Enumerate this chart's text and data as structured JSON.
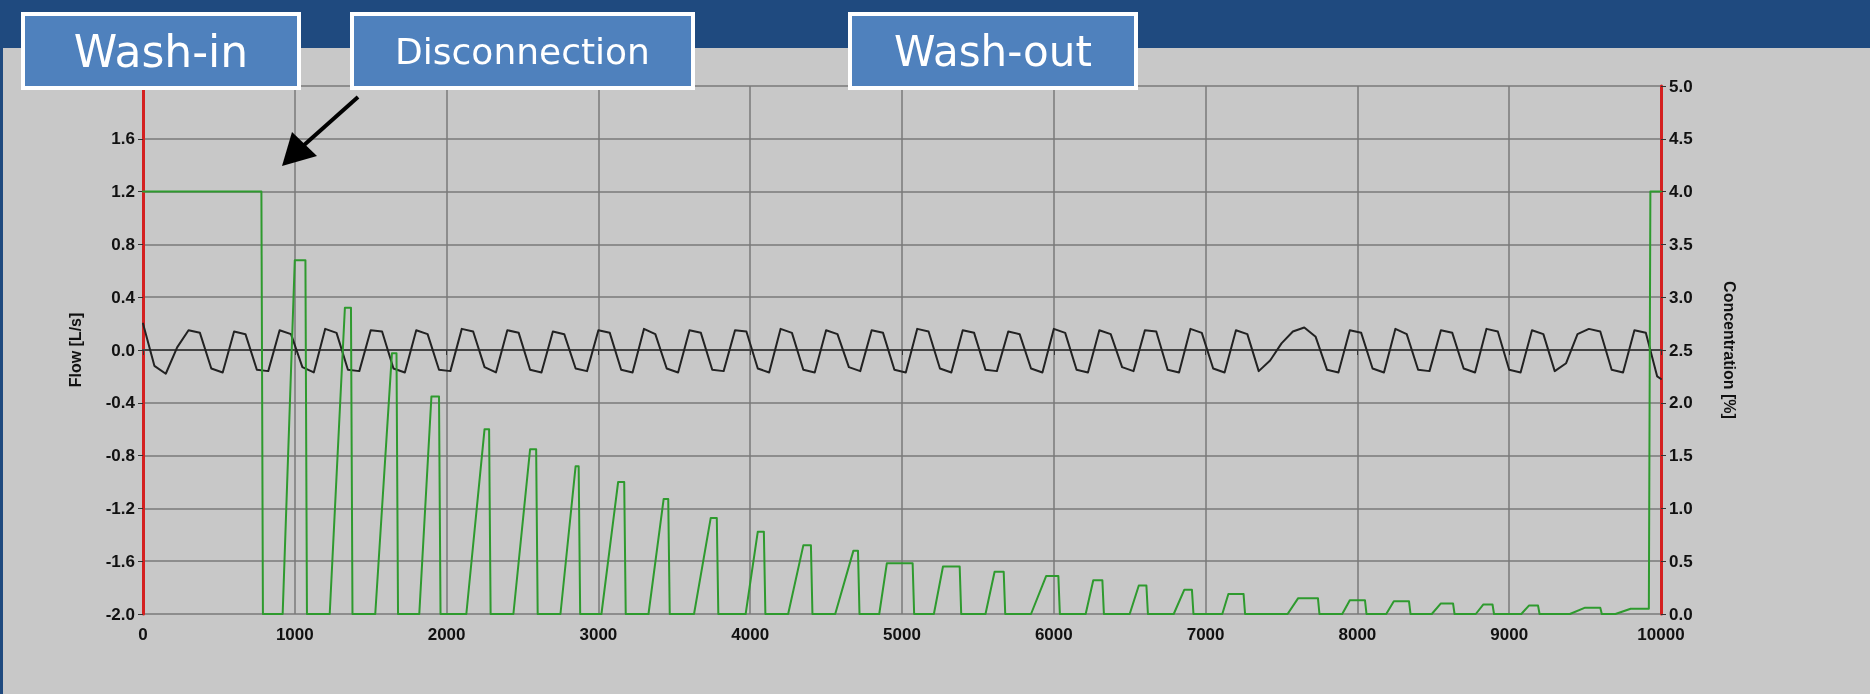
{
  "chart_data": {
    "type": "line",
    "ylabel": "Flow [L/s]",
    "y2label": "Concentration [%]",
    "annotations": [
      "Wash-in",
      "Disconnection",
      "Wash-out"
    ],
    "xlim": [
      0,
      10000
    ],
    "xticks": [
      0,
      1000,
      2000,
      3000,
      4000,
      5000,
      6000,
      7000,
      8000,
      9000,
      10000
    ],
    "ylim": [
      -2,
      2
    ],
    "yticks": [
      {
        "value": -2,
        "label": "-2.0"
      },
      {
        "value": -1.6,
        "label": "-1.6"
      },
      {
        "value": -1.2,
        "label": "-1.2"
      },
      {
        "value": -0.8,
        "label": "-0.8"
      },
      {
        "value": -0.4,
        "label": "-0.4"
      },
      {
        "value": 0,
        "label": "0.0"
      },
      {
        "value": 0.4,
        "label": "0.4"
      },
      {
        "value": 0.8,
        "label": "0.8"
      },
      {
        "value": 1.2,
        "label": "1.2"
      },
      {
        "value": 1.6,
        "label": "1.6"
      },
      {
        "value": 2,
        "label": null
      }
    ],
    "y2lim": [
      0,
      5
    ],
    "y2ticks": [
      {
        "value": 0,
        "label": "0.0"
      },
      {
        "value": 0.5,
        "label": "0.5"
      },
      {
        "value": 1,
        "label": "1.0"
      },
      {
        "value": 1.5,
        "label": "1.5"
      },
      {
        "value": 2,
        "label": "2.0"
      },
      {
        "value": 2.5,
        "label": "2.5"
      },
      {
        "value": 3,
        "label": "3.0"
      },
      {
        "value": 3.5,
        "label": "3.5"
      },
      {
        "value": 4,
        "label": "4.0"
      },
      {
        "value": 4.5,
        "label": "4.5"
      },
      {
        "value": 5,
        "label": "5.0"
      }
    ],
    "grid": true,
    "marker": "none",
    "line_style": "solid",
    "series": [
      {
        "color": "#222222",
        "x": [
          0,
          75,
          150,
          225,
          300,
          375,
          450,
          525,
          600,
          675,
          750,
          825,
          900,
          975,
          1050,
          1125,
          1200,
          1275,
          1350,
          1425,
          1500,
          1575,
          1650,
          1725,
          1800,
          1875,
          1950,
          2025,
          2100,
          2175,
          2250,
          2325,
          2400,
          2475,
          2550,
          2625,
          2700,
          2775,
          2850,
          2925,
          3000,
          3075,
          3150,
          3225,
          3300,
          3375,
          3450,
          3525,
          3600,
          3675,
          3750,
          3825,
          3900,
          3975,
          4050,
          4125,
          4200,
          4275,
          4350,
          4425,
          4500,
          4575,
          4650,
          4725,
          4800,
          4875,
          4950,
          5025,
          5100,
          5175,
          5250,
          5325,
          5400,
          5475,
          5550,
          5625,
          5700,
          5775,
          5850,
          5925,
          6000,
          6075,
          6150,
          6225,
          6300,
          6375,
          6450,
          6525,
          6600,
          6675,
          6750,
          6825,
          6900,
          6975,
          7050,
          7125,
          7200,
          7275,
          7350,
          7425,
          7500,
          7575,
          7650,
          7725,
          7800,
          7875,
          7950,
          8025,
          8100,
          8175,
          8250,
          8325,
          8400,
          8475,
          8550,
          8625,
          8700,
          8775,
          8850,
          8925,
          9000,
          9075,
          9150,
          9225,
          9300,
          9375,
          9450,
          9525,
          9600,
          9675,
          9750,
          9825,
          9900,
          9975,
          10000
        ],
        "values": [
          0.2,
          -0.12,
          -0.18,
          0.02,
          0.15,
          0.13,
          -0.14,
          -0.17,
          0.14,
          0.12,
          -0.15,
          -0.16,
          0.15,
          0.12,
          -0.13,
          -0.17,
          0.16,
          0.13,
          -0.15,
          -0.16,
          0.15,
          0.14,
          -0.14,
          -0.17,
          0.15,
          0.12,
          -0.15,
          -0.16,
          0.16,
          0.14,
          -0.13,
          -0.17,
          0.15,
          0.13,
          -0.15,
          -0.17,
          0.14,
          0.12,
          -0.14,
          -0.16,
          0.15,
          0.13,
          -0.15,
          -0.17,
          0.16,
          0.12,
          -0.14,
          -0.17,
          0.15,
          0.13,
          -0.15,
          -0.16,
          0.15,
          0.14,
          -0.14,
          -0.17,
          0.16,
          0.13,
          -0.15,
          -0.17,
          0.15,
          0.12,
          -0.13,
          -0.16,
          0.15,
          0.13,
          -0.15,
          -0.17,
          0.16,
          0.14,
          -0.14,
          -0.17,
          0.15,
          0.13,
          -0.15,
          -0.16,
          0.14,
          0.12,
          -0.14,
          -0.17,
          0.16,
          0.13,
          -0.15,
          -0.17,
          0.15,
          0.12,
          -0.13,
          -0.16,
          0.15,
          0.14,
          -0.15,
          -0.17,
          0.16,
          0.13,
          -0.14,
          -0.17,
          0.15,
          0.12,
          -0.16,
          -0.08,
          0.05,
          0.14,
          0.17,
          0.1,
          -0.15,
          -0.17,
          0.15,
          0.13,
          -0.14,
          -0.17,
          0.16,
          0.12,
          -0.15,
          -0.16,
          0.15,
          0.13,
          -0.14,
          -0.17,
          0.16,
          0.14,
          -0.15,
          -0.17,
          0.15,
          0.12,
          -0.16,
          -0.1,
          0.12,
          0.16,
          0.14,
          -0.15,
          -0.17,
          0.15,
          0.13,
          -0.2,
          -0.22
        ]
      },
      {
        "color": "#2e9a2e",
        "axis": "y2",
        "x": [
          0,
          780,
          790,
          920,
          1000,
          1070,
          1080,
          1230,
          1330,
          1370,
          1380,
          1530,
          1640,
          1670,
          1680,
          1820,
          1900,
          1950,
          1960,
          2130,
          2250,
          2280,
          2290,
          2440,
          2550,
          2590,
          2600,
          2750,
          2850,
          2870,
          2880,
          3020,
          3130,
          3170,
          3180,
          3330,
          3430,
          3460,
          3470,
          3630,
          3740,
          3780,
          3790,
          3970,
          4050,
          4090,
          4100,
          4250,
          4350,
          4400,
          4410,
          4560,
          4680,
          4710,
          4720,
          4850,
          4900,
          5070,
          5080,
          5210,
          5270,
          5380,
          5390,
          5550,
          5610,
          5670,
          5680,
          5850,
          5950,
          6030,
          6040,
          6210,
          6260,
          6320,
          6330,
          6500,
          6560,
          6610,
          6620,
          6790,
          6860,
          6910,
          6920,
          7110,
          7150,
          7250,
          7260,
          7540,
          7610,
          7740,
          7750,
          7900,
          7950,
          8050,
          8060,
          8190,
          8240,
          8340,
          8350,
          8490,
          8550,
          8630,
          8640,
          8780,
          8830,
          8890,
          8900,
          9080,
          9130,
          9190,
          9200,
          9400,
          9500,
          9600,
          9610,
          9700,
          9800,
          9920,
          9930,
          10000
        ],
        "values": [
          4,
          4,
          0,
          0,
          3.35,
          3.35,
          0,
          0,
          2.9,
          2.9,
          0,
          0,
          2.47,
          2.47,
          0,
          0,
          2.06,
          2.06,
          0,
          0,
          1.75,
          1.75,
          0,
          0,
          1.56,
          1.56,
          0,
          0,
          1.4,
          1.4,
          0,
          0,
          1.25,
          1.25,
          0,
          0,
          1.09,
          1.09,
          0,
          0,
          0.91,
          0.91,
          0,
          0,
          0.78,
          0.78,
          0,
          0,
          0.65,
          0.65,
          0,
          0,
          0.6,
          0.6,
          0,
          0,
          0.48,
          0.48,
          0,
          0,
          0.45,
          0.45,
          0,
          0,
          0.4,
          0.4,
          0,
          0,
          0.36,
          0.36,
          0,
          0,
          0.32,
          0.32,
          0,
          0,
          0.27,
          0.27,
          0,
          0,
          0.23,
          0.23,
          0,
          0,
          0.19,
          0.19,
          0,
          0,
          0.15,
          0.15,
          0,
          0,
          0.13,
          0.13,
          0,
          0,
          0.12,
          0.12,
          0,
          0,
          0.1,
          0.1,
          0,
          0,
          0.09,
          0.09,
          0,
          0,
          0.08,
          0.08,
          0,
          0,
          0.06,
          0.06,
          0,
          0,
          0.05,
          0.05,
          4,
          4
        ]
      }
    ]
  }
}
